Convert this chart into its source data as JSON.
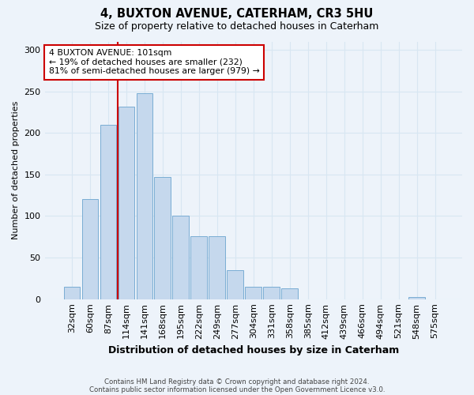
{
  "title1": "4, BUXTON AVENUE, CATERHAM, CR3 5HU",
  "title2": "Size of property relative to detached houses in Caterham",
  "xlabel": "Distribution of detached houses by size in Caterham",
  "ylabel": "Number of detached properties",
  "categories": [
    "32sqm",
    "60sqm",
    "87sqm",
    "114sqm",
    "141sqm",
    "168sqm",
    "195sqm",
    "222sqm",
    "249sqm",
    "277sqm",
    "304sqm",
    "331sqm",
    "358sqm",
    "385sqm",
    "412sqm",
    "439sqm",
    "466sqm",
    "494sqm",
    "521sqm",
    "548sqm",
    "575sqm"
  ],
  "values": [
    15,
    120,
    210,
    232,
    248,
    147,
    100,
    76,
    76,
    35,
    15,
    15,
    13,
    0,
    0,
    0,
    0,
    0,
    0,
    3,
    0
  ],
  "bar_color": "#c5d8ed",
  "bar_edge_color": "#7aadd4",
  "grid_color": "#d8e6f2",
  "background_color": "#edf3fa",
  "vline_color": "#cc0000",
  "annotation_text": "4 BUXTON AVENUE: 101sqm\n← 19% of detached houses are smaller (232)\n81% of semi-detached houses are larger (979) →",
  "annotation_box_color": "#ffffff",
  "annotation_box_edge": "#cc0000",
  "footer1": "Contains HM Land Registry data © Crown copyright and database right 2024.",
  "footer2": "Contains public sector information licensed under the Open Government Licence v3.0.",
  "ylim": [
    0,
    310
  ],
  "yticks": [
    0,
    50,
    100,
    150,
    200,
    250,
    300
  ]
}
